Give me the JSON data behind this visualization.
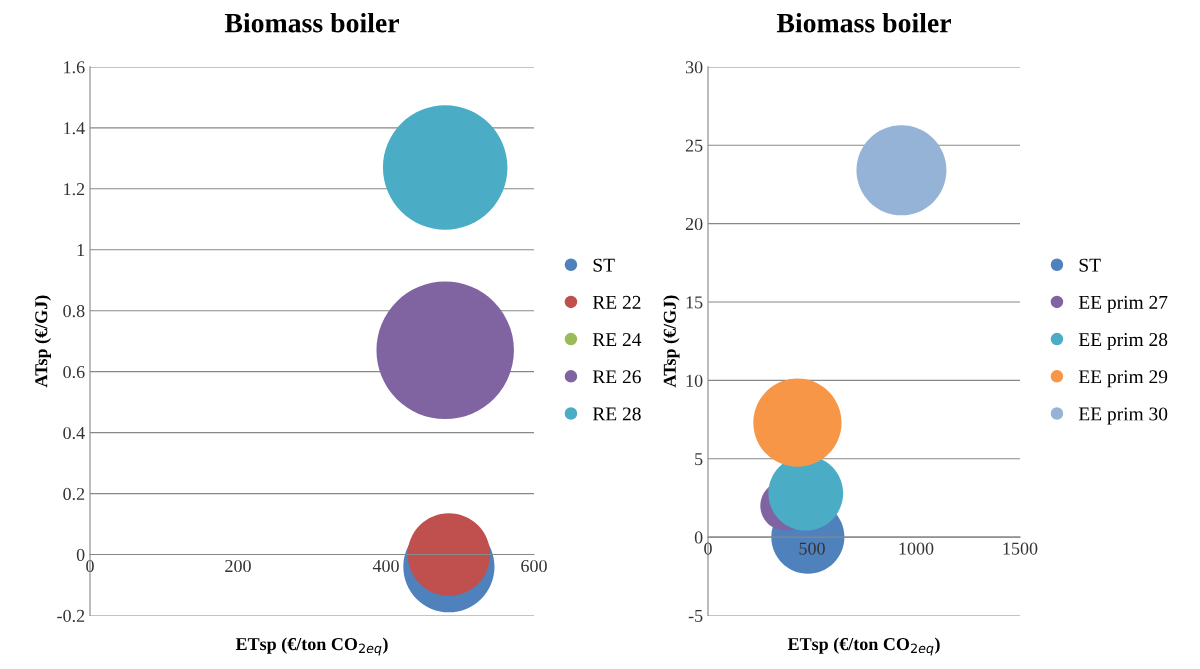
{
  "chart_data": [
    {
      "type": "bubble",
      "title": "Biomass boiler",
      "xlabel": "ETsp (€/ton CO$_{2eq}$)",
      "ylabel": "ATsp (€/GJ)",
      "xlim": [
        0,
        600
      ],
      "xticks": [
        0,
        200,
        400,
        600
      ],
      "ylim": [
        -0.2,
        1.6
      ],
      "yticks": [
        -0.2,
        0,
        0.2,
        0.4,
        0.6,
        0.8,
        1,
        1.2,
        1.4,
        1.6
      ],
      "grid": "y",
      "legend": "right",
      "series": [
        {
          "name": "ST",
          "color": "#4f81bd",
          "x": [
            485
          ],
          "values": [
            -0.04
          ],
          "sizes": [
            0.44
          ]
        },
        {
          "name": "RE 22",
          "color": "#c0504d",
          "x": [
            485
          ],
          "values": [
            0
          ],
          "sizes": [
            0.36
          ]
        },
        {
          "name": "RE 24",
          "color": "#9bbb59",
          "x": [
            null
          ],
          "values": [
            null
          ],
          "sizes": [
            null
          ]
        },
        {
          "name": "RE 26",
          "color": "#8064a2",
          "x": [
            480
          ],
          "values": [
            0.67
          ],
          "sizes": [
            1
          ]
        },
        {
          "name": "RE 28",
          "color": "#4bacc6",
          "x": [
            480
          ],
          "values": [
            1.27
          ],
          "sizes": [
            0.82
          ]
        }
      ]
    },
    {
      "type": "bubble",
      "title": "Biomass boiler",
      "xlabel": "ETsp (€/ton CO$_{2eq}$)",
      "ylabel": "ATsp (€/GJ)",
      "xlim": [
        0,
        1500
      ],
      "xticks": [
        0,
        500,
        1000,
        1500
      ],
      "ylim": [
        -5,
        30
      ],
      "yticks": [
        -5,
        0,
        5,
        10,
        15,
        20,
        25,
        30
      ],
      "grid": "y",
      "legend": "right",
      "series": [
        {
          "name": "ST",
          "color": "#4f81bd",
          "x": [
            480
          ],
          "values": [
            0
          ],
          "sizes": [
            0.66
          ]
        },
        {
          "name": "EE prim 27",
          "color": "#8064a2",
          "x": [
            370
          ],
          "values": [
            2
          ],
          "sizes": [
            0.3
          ]
        },
        {
          "name": "EE prim 28",
          "color": "#4bacc6",
          "x": [
            470
          ],
          "values": [
            2.8
          ],
          "sizes": [
            0.69
          ]
        },
        {
          "name": "EE prim 29",
          "color": "#f79646",
          "x": [
            430
          ],
          "values": [
            7.3
          ],
          "sizes": [
            0.96
          ]
        },
        {
          "name": "EE prim 30",
          "color": "#95b3d7",
          "x": [
            930
          ],
          "values": [
            23.4
          ],
          "sizes": [
            1
          ]
        }
      ]
    }
  ]
}
